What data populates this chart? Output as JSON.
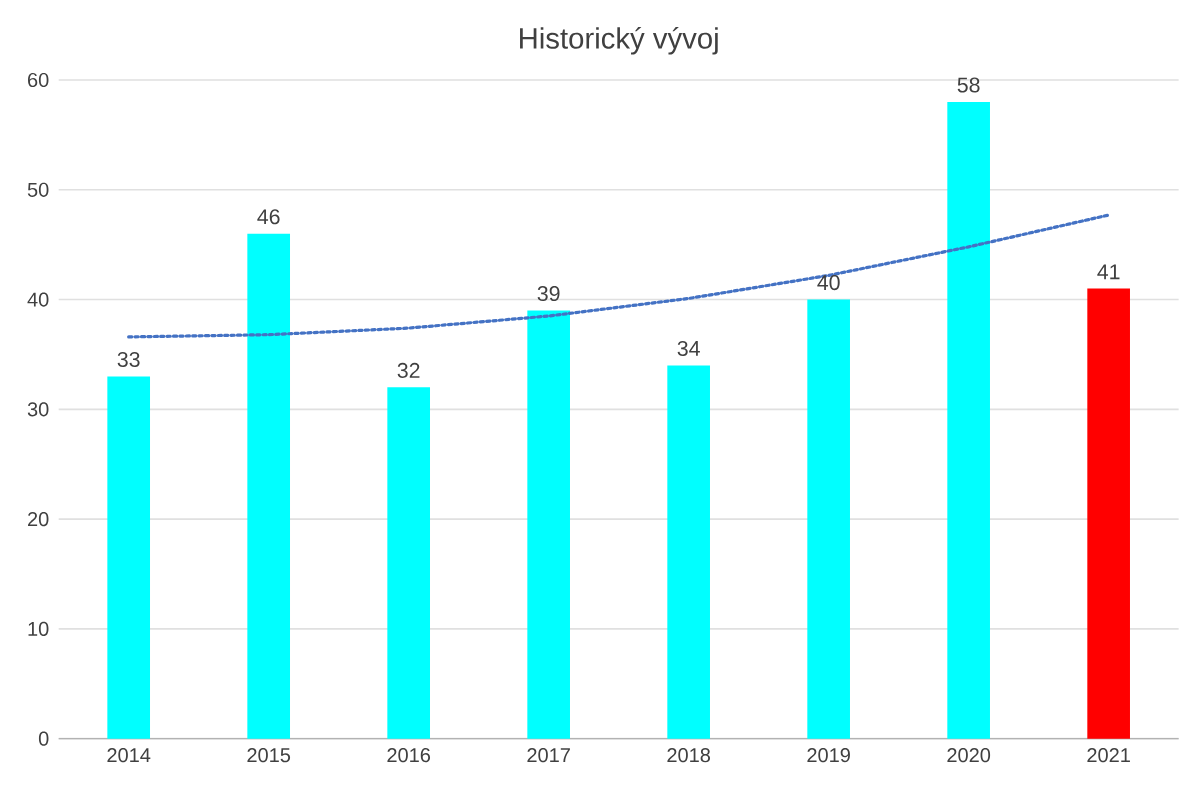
{
  "chart_data": {
    "type": "bar",
    "title": "Historický vývoj",
    "categories": [
      "2014",
      "2015",
      "2016",
      "2017",
      "2018",
      "2019",
      "2020",
      "2021"
    ],
    "series": [
      {
        "value_labels": [
          "33",
          "46",
          "32",
          "39",
          "34",
          "40",
          "58",
          "41"
        ],
        "colors": [
          "#00ffff",
          "#00ffff",
          "#00ffff",
          "#00ffff",
          "#00ffff",
          "#00ffff",
          "#00ffff",
          "#ff0000"
        ],
        "values": [
          33,
          46,
          32,
          39,
          34,
          40,
          58,
          41
        ]
      },
      {
        "type": "line",
        "color": "#4472c4",
        "line_style": "dotted",
        "values": [
          36.6,
          36.8,
          37.4,
          38.5,
          40.1,
          42.2,
          44.8,
          47.7
        ]
      }
    ],
    "ylim": [
      0,
      60
    ],
    "yticks": [
      0,
      10,
      20,
      30,
      40,
      50,
      60
    ],
    "grid": "y"
  }
}
